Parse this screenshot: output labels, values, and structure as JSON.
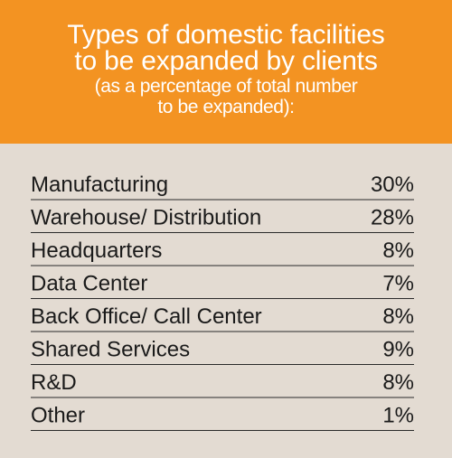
{
  "header": {
    "title_lines": [
      "Types of domestic facilities",
      "to be expanded by clients"
    ],
    "subtitle_lines": [
      "(as a percentage of total number",
      "to be expanded):"
    ]
  },
  "colors": {
    "header_bg": "#f39322",
    "body_bg": "#e3dbd2",
    "header_text": "#ffffff",
    "row_text": "#1a1a1a",
    "divider": "#2a2a2a"
  },
  "chart_data": {
    "type": "table",
    "title": "Types of domestic facilities to be expanded by clients",
    "subtitle": "(as a percentage of total number to be expanded):",
    "categories": [
      "Manufacturing",
      "Warehouse/ Distribution",
      "Headquarters",
      "Data Center",
      "Back Office/ Call Center",
      "Shared Services",
      "R&D",
      "Other"
    ],
    "values": [
      30,
      28,
      8,
      7,
      8,
      9,
      8,
      1
    ],
    "value_labels": [
      "30%",
      "28%",
      "8%",
      "7%",
      "8%",
      "9%",
      "8%",
      "1%"
    ]
  }
}
